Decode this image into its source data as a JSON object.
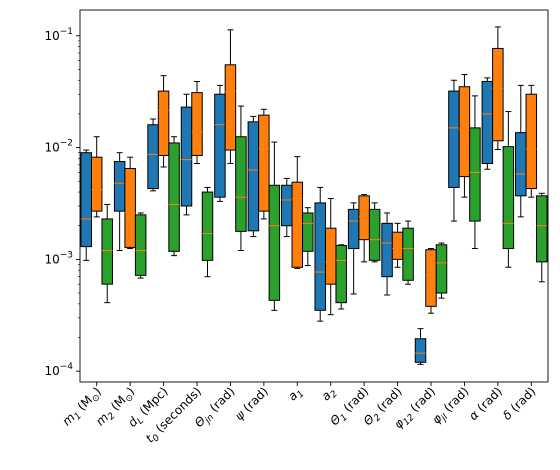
{
  "chart_data": {
    "type": "box",
    "yscale": "log",
    "ylim": [
      8e-05,
      0.17
    ],
    "y_ticks": [
      {
        "value": 0.1,
        "base": "10",
        "exp": "−1"
      },
      {
        "value": 0.01,
        "base": "10",
        "exp": "−2"
      },
      {
        "value": 0.001,
        "base": "10",
        "exp": "−3"
      },
      {
        "value": 0.0001,
        "base": "10",
        "exp": "−4"
      }
    ],
    "categories": [
      {
        "sym": "m",
        "sub": "1",
        "unit": " (M",
        "unit_sub": "⊙",
        "unit_end": ")"
      },
      {
        "sym": "m",
        "sub": "2",
        "unit": " (M",
        "unit_sub": "⊙",
        "unit_end": ")"
      },
      {
        "sym": "d",
        "sub": "L",
        "unit": " (Mpc)",
        "unit_sub": "",
        "unit_end": ""
      },
      {
        "sym": "t",
        "sub": "0",
        "unit": " (seconds)",
        "unit_sub": "",
        "unit_end": ""
      },
      {
        "sym": "Θ",
        "sub": "jn",
        "unit": " (rad)",
        "unit_sub": "",
        "unit_end": ""
      },
      {
        "sym": "ψ",
        "sub": "",
        "unit": " (rad)",
        "unit_sub": "",
        "unit_end": ""
      },
      {
        "sym": "a",
        "sub": "1",
        "unit": "",
        "unit_sub": "",
        "unit_end": ""
      },
      {
        "sym": "a",
        "sub": "2",
        "unit": "",
        "unit_sub": "",
        "unit_end": ""
      },
      {
        "sym": "Θ",
        "sub": "1",
        "unit": " (rad)",
        "unit_sub": "",
        "unit_end": ""
      },
      {
        "sym": "Θ",
        "sub": "2",
        "unit": " (rad)",
        "unit_sub": "",
        "unit_end": ""
      },
      {
        "sym": "φ",
        "sub": "12",
        "unit": " (rad)",
        "unit_sub": "",
        "unit_end": ""
      },
      {
        "sym": "φ",
        "sub": "jl",
        "unit": " (rad)",
        "unit_sub": "",
        "unit_end": ""
      },
      {
        "sym": "α",
        "sub": "",
        "unit": " (rad)",
        "unit_sub": "",
        "unit_end": ""
      },
      {
        "sym": "δ",
        "sub": "",
        "unit": " (rad)",
        "unit_sub": "",
        "unit_end": ""
      }
    ],
    "series": [
      {
        "color": "#1f77b4",
        "boxes": [
          {
            "lo": 0.00098,
            "q1": 0.0013,
            "med": 0.0023,
            "q3": 0.009,
            "hi": 0.0095
          },
          {
            "lo": 0.0012,
            "q1": 0.0027,
            "med": 0.0048,
            "q3": 0.0075,
            "hi": 0.009
          },
          {
            "lo": 0.0041,
            "q1": 0.0043,
            "med": 0.0087,
            "q3": 0.016,
            "hi": 0.018
          },
          {
            "lo": 0.0025,
            "q1": 0.003,
            "med": 0.0078,
            "q3": 0.023,
            "hi": 0.03
          },
          {
            "lo": 0.0033,
            "q1": 0.0036,
            "med": 0.016,
            "q3": 0.03,
            "hi": 0.036
          },
          {
            "lo": 0.0016,
            "q1": 0.0018,
            "med": 0.0063,
            "q3": 0.017,
            "hi": 0.019
          },
          {
            "lo": 0.0016,
            "q1": 0.002,
            "med": 0.0034,
            "q3": 0.0046,
            "hi": 0.0053
          },
          {
            "lo": 0.00028,
            "q1": 0.00035,
            "med": 0.00077,
            "q3": 0.0032,
            "hi": 0.0044
          },
          {
            "lo": 0.00049,
            "q1": 0.00125,
            "med": 0.0022,
            "q3": 0.0028,
            "hi": 0.0032
          },
          {
            "lo": 0.00048,
            "q1": 0.0007,
            "med": 0.0014,
            "q3": 0.0021,
            "hi": 0.0026
          },
          {
            "lo": 0.000115,
            "q1": 0.00012,
            "med": 0.000145,
            "q3": 0.000195,
            "hi": 0.00024
          },
          {
            "lo": 0.0022,
            "q1": 0.0044,
            "med": 0.015,
            "q3": 0.032,
            "hi": 0.04
          },
          {
            "lo": 0.0064,
            "q1": 0.0072,
            "med": 0.02,
            "q3": 0.039,
            "hi": 0.042
          },
          {
            "lo": 0.0024,
            "q1": 0.0037,
            "med": 0.0058,
            "q3": 0.0136,
            "hi": 0.036
          }
        ]
      },
      {
        "color": "#ff7f0e",
        "boxes": [
          {
            "lo": 0.0024,
            "q1": 0.0027,
            "med": 0.0042,
            "q3": 0.0082,
            "hi": 0.0125
          },
          {
            "lo": 0.00125,
            "q1": 0.00128,
            "med": 0.0026,
            "q3": 0.0065,
            "hi": 0.0082
          },
          {
            "lo": 0.0067,
            "q1": 0.0085,
            "med": 0.0215,
            "q3": 0.032,
            "hi": 0.044
          },
          {
            "lo": 0.0072,
            "q1": 0.0085,
            "med": 0.0138,
            "q3": 0.031,
            "hi": 0.039
          },
          {
            "lo": 0.0072,
            "q1": 0.0095,
            "med": 0.032,
            "q3": 0.055,
            "hi": 0.113
          },
          {
            "lo": 0.0023,
            "q1": 0.0027,
            "med": 0.0098,
            "q3": 0.0195,
            "hi": 0.022
          },
          {
            "lo": 0.00083,
            "q1": 0.00085,
            "med": 0.0035,
            "q3": 0.0049,
            "hi": 0.0083
          },
          {
            "lo": 0.00032,
            "q1": 0.0006,
            "med": 0.00095,
            "q3": 0.0019,
            "hi": 0.0035
          },
          {
            "lo": 0.00095,
            "q1": 0.0015,
            "med": 0.0024,
            "q3": 0.0037,
            "hi": 0.0038
          },
          {
            "lo": 0.00085,
            "q1": 0.001,
            "med": 0.00125,
            "q3": 0.00175,
            "hi": 0.0021
          },
          {
            "lo": 0.00033,
            "q1": 0.00038,
            "med": 0.00072,
            "q3": 0.00122,
            "hi": 0.00125
          },
          {
            "lo": 0.0036,
            "q1": 0.0055,
            "med": 0.0145,
            "q3": 0.035,
            "hi": 0.045
          },
          {
            "lo": 0.0096,
            "q1": 0.0115,
            "med": 0.034,
            "q3": 0.077,
            "hi": 0.12
          },
          {
            "lo": 0.0036,
            "q1": 0.0043,
            "med": 0.0097,
            "q3": 0.03,
            "hi": 0.036
          }
        ]
      },
      {
        "color": "#2ca02c",
        "boxes": [
          {
            "lo": 0.00041,
            "q1": 0.0006,
            "med": 0.0012,
            "q3": 0.0023,
            "hi": 0.0031
          },
          {
            "lo": 0.00068,
            "q1": 0.00072,
            "med": 0.0012,
            "q3": 0.0025,
            "hi": 0.0026
          },
          {
            "lo": 0.00108,
            "q1": 0.00118,
            "med": 0.0031,
            "q3": 0.011,
            "hi": 0.0125
          },
          {
            "lo": 0.0007,
            "q1": 0.00098,
            "med": 0.0017,
            "q3": 0.004,
            "hi": 0.0044
          },
          {
            "lo": 0.0012,
            "q1": 0.00178,
            "med": 0.0036,
            "q3": 0.0125,
            "hi": 0.0235
          },
          {
            "lo": 0.00035,
            "q1": 0.00043,
            "med": 0.002,
            "q3": 0.0046,
            "hi": 0.0112
          },
          {
            "lo": 0.00088,
            "q1": 0.00118,
            "med": 0.0021,
            "q3": 0.0026,
            "hi": 0.0029
          },
          {
            "lo": 0.00036,
            "q1": 0.00041,
            "med": 0.00098,
            "q3": 0.00133,
            "hi": 0.00135
          },
          {
            "lo": 0.00095,
            "q1": 0.00098,
            "med": 0.0015,
            "q3": 0.0028,
            "hi": 0.0032
          },
          {
            "lo": 0.0006,
            "q1": 0.00065,
            "med": 0.00125,
            "q3": 0.0019,
            "hi": 0.0022
          },
          {
            "lo": 0.00045,
            "q1": 0.0005,
            "med": 0.00093,
            "q3": 0.00135,
            "hi": 0.0014
          },
          {
            "lo": 0.00125,
            "q1": 0.0022,
            "med": 0.006,
            "q3": 0.015,
            "hi": 0.029
          },
          {
            "lo": 0.00085,
            "q1": 0.00125,
            "med": 0.0021,
            "q3": 0.0102,
            "hi": 0.021
          },
          {
            "lo": 0.00063,
            "q1": 0.00095,
            "med": 0.002,
            "q3": 0.0037,
            "hi": 0.0039
          }
        ]
      }
    ],
    "median_color": "#ff7f0e",
    "whisker_color": "#000000",
    "grid": false,
    "legend": "none"
  }
}
